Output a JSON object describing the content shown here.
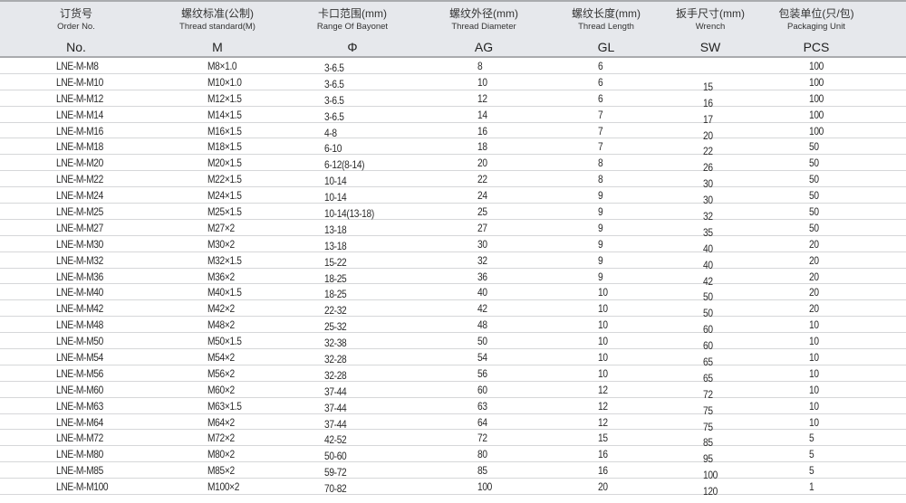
{
  "columns": [
    {
      "cn": "订货号",
      "en": "Order No.",
      "sym": "No."
    },
    {
      "cn": "螺纹标准(公制)",
      "en": "Thread standard(M)",
      "sym": "M"
    },
    {
      "cn": "卡口范围(mm)",
      "en": "Range Of Bayonet",
      "sym": "Φ"
    },
    {
      "cn": "螺纹外径(mm)",
      "en": "Thread Diameter",
      "sym": "AG"
    },
    {
      "cn": "螺纹长度(mm)",
      "en": "Thread Length",
      "sym": "GL"
    },
    {
      "cn": "扳手尺寸(mm)",
      "en": "Wrench",
      "sym": "SW"
    },
    {
      "cn": "包装单位(只/包)",
      "en": "Packaging Unit",
      "sym": "PCS"
    }
  ],
  "rows": [
    [
      "LNE-M-M8",
      "M8×1.0",
      "3-6.5",
      "8",
      "6",
      "",
      "100"
    ],
    [
      "LNE-M-M10",
      "M10×1.0",
      "3-6.5",
      "10",
      "6",
      "15",
      "100"
    ],
    [
      "LNE-M-M12",
      "M12×1.5",
      "3-6.5",
      "12",
      "6",
      "16",
      "100"
    ],
    [
      "LNE-M-M14",
      "M14×1.5",
      "3-6.5",
      "14",
      "7",
      "17",
      "100"
    ],
    [
      "LNE-M-M16",
      "M16×1.5",
      "4-8",
      "16",
      "7",
      "20",
      "100"
    ],
    [
      "LNE-M-M18",
      "M18×1.5",
      "6-10",
      "18",
      "7",
      "22",
      "50"
    ],
    [
      "LNE-M-M20",
      "M20×1.5",
      "6-12(8-14)",
      "20",
      "8",
      "26",
      "50"
    ],
    [
      "LNE-M-M22",
      "M22×1.5",
      "10-14",
      "22",
      "8",
      "30",
      "50"
    ],
    [
      "LNE-M-M24",
      "M24×1.5",
      "10-14",
      "24",
      "9",
      "30",
      "50"
    ],
    [
      "LNE-M-M25",
      "M25×1.5",
      "10-14(13-18)",
      "25",
      "9",
      "32",
      "50"
    ],
    [
      "LNE-M-M27",
      "M27×2",
      "13-18",
      "27",
      "9",
      "35",
      "50"
    ],
    [
      "LNE-M-M30",
      "M30×2",
      "13-18",
      "30",
      "9",
      "40",
      "20"
    ],
    [
      "LNE-M-M32",
      "M32×1.5",
      "15-22",
      "32",
      "9",
      "40",
      "20"
    ],
    [
      "LNE-M-M36",
      "M36×2",
      "18-25",
      "36",
      "9",
      "42",
      "20"
    ],
    [
      "LNE-M-M40",
      "M40×1.5",
      "18-25",
      "40",
      "10",
      "50",
      "20"
    ],
    [
      "LNE-M-M42",
      "M42×2",
      "22-32",
      "42",
      "10",
      "50",
      "20"
    ],
    [
      "LNE-M-M48",
      "M48×2",
      "25-32",
      "48",
      "10",
      "60",
      "10"
    ],
    [
      "LNE-M-M50",
      "M50×1.5",
      "32-38",
      "50",
      "10",
      "60",
      "10"
    ],
    [
      "LNE-M-M54",
      "M54×2",
      "32-28",
      "54",
      "10",
      "65",
      "10"
    ],
    [
      "LNE-M-M56",
      "M56×2",
      "32-28",
      "56",
      "10",
      "65",
      "10"
    ],
    [
      "LNE-M-M60",
      "M60×2",
      "37-44",
      "60",
      "12",
      "72",
      "10"
    ],
    [
      "LNE-M-M63",
      "M63×1.5",
      "37-44",
      "63",
      "12",
      "75",
      "10"
    ],
    [
      "LNE-M-M64",
      "M64×2",
      "37-44",
      "64",
      "12",
      "75",
      "10"
    ],
    [
      "LNE-M-M72",
      "M72×2",
      "42-52",
      "72",
      "15",
      "85",
      "5"
    ],
    [
      "LNE-M-M80",
      "M80×2",
      "50-60",
      "80",
      "16",
      "95",
      "5"
    ],
    [
      "LNE-M-M85",
      "M85×2",
      "59-72",
      "85",
      "16",
      "100",
      "5"
    ],
    [
      "LNE-M-M100",
      "M100×2",
      "70-82",
      "100",
      "20",
      "120",
      "1"
    ]
  ]
}
